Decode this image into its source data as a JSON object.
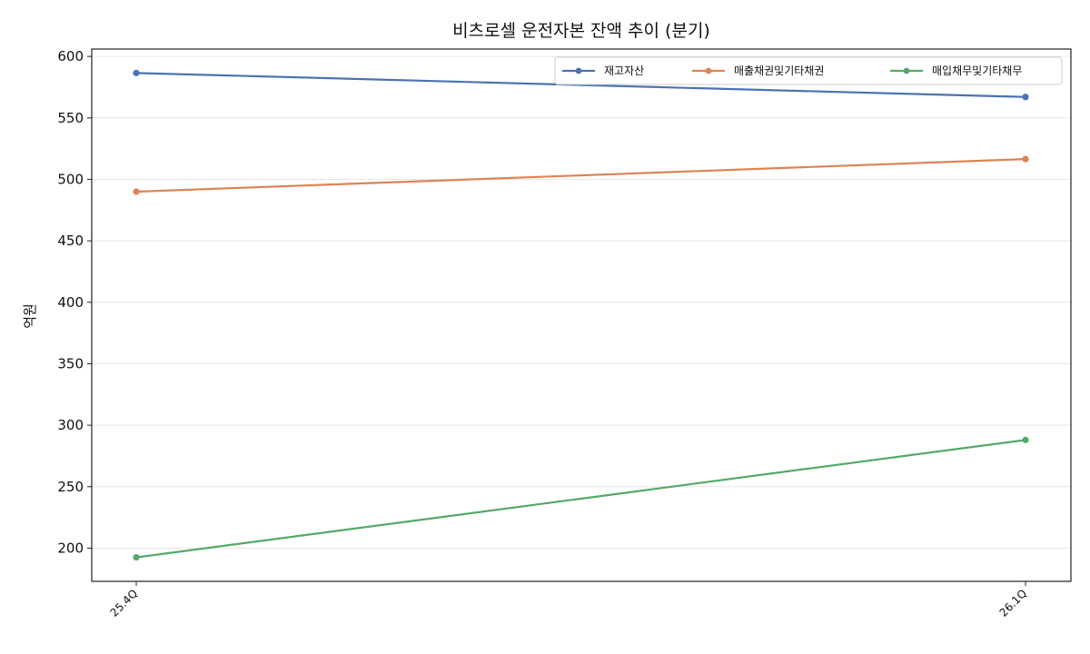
{
  "chart_data": {
    "type": "line",
    "title": "비츠로셀 운전자본 잔액 추이 (분기)",
    "xlabel": "",
    "ylabel": "억원",
    "categories": [
      "25.4Q",
      "26.1Q"
    ],
    "ylim": [
      173,
      606
    ],
    "yticks": [
      200,
      250,
      300,
      350,
      400,
      450,
      500,
      550,
      600
    ],
    "grid": true,
    "legend_position": "top-right",
    "series": [
      {
        "name": "재고자산",
        "values": [
          586.5,
          567.0
        ],
        "color": "#4c72b0"
      },
      {
        "name": "매출채권및기타채권",
        "values": [
          490.0,
          516.5
        ],
        "color": "#dd8452"
      },
      {
        "name": "매입채무및기타채무",
        "values": [
          192.5,
          288.0
        ],
        "color": "#55a868"
      }
    ]
  }
}
